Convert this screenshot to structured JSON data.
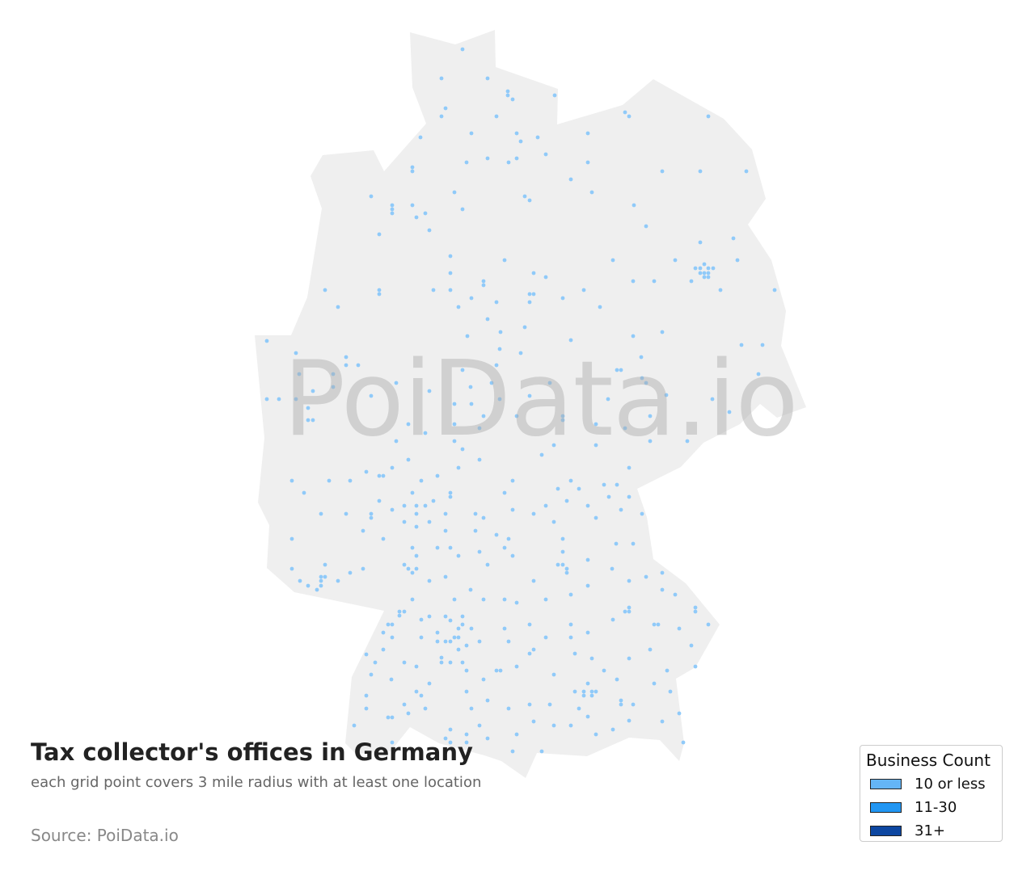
{
  "title": "Tax collector's offices in Germany",
  "subtitle": "each grid point covers 3 mile radius with at least one location",
  "source": "Source: PoiData.io",
  "watermark": "PoiData.io",
  "map": {
    "region": "Germany",
    "land_color": "#efefef",
    "point_color": "#90caf9"
  },
  "legend": {
    "title": "Business Count",
    "items": [
      {
        "label": "10 or less",
        "color": "#64b5f6"
      },
      {
        "label": "11-30",
        "color": "#2196f3"
      },
      {
        "label": "31+",
        "color": "#0d47a1"
      }
    ]
  }
}
